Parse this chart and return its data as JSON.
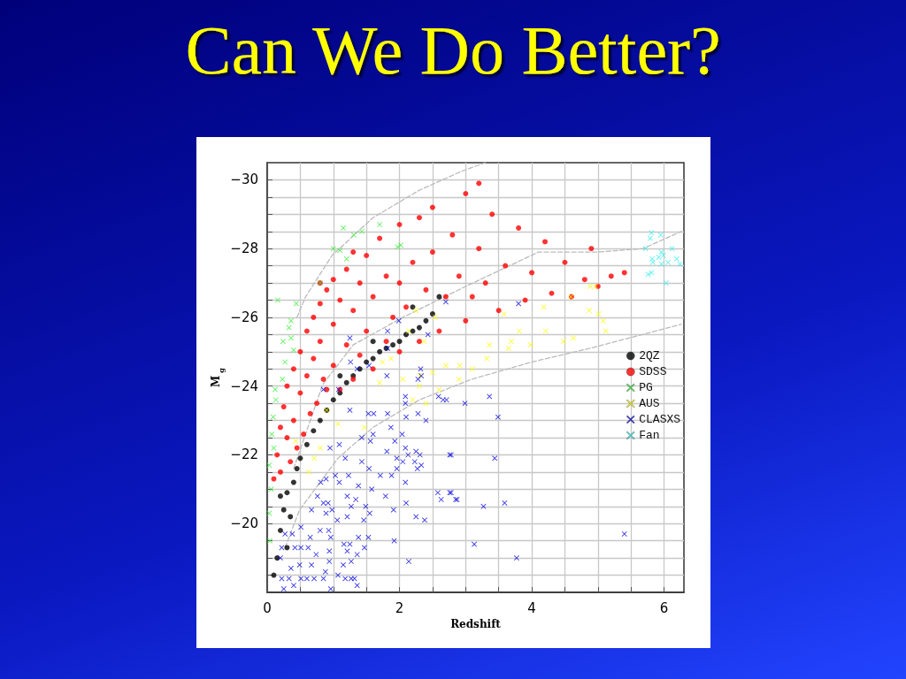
{
  "chart_data": {
    "type": "scatter",
    "title": "Can We Do Better?",
    "xlabel": "Redshift",
    "ylabel": "M$_{g}$",
    "xlim": [
      0,
      6.3
    ],
    "ylim": [
      -18,
      -30.5
    ],
    "xticks": [
      0,
      {
        "value": 0.5,
        "label": null
      },
      {
        "value": 1,
        "label": null
      },
      {
        "value": 1.5,
        "label": null
      },
      2,
      {
        "value": 2.5,
        "label": null
      },
      {
        "value": 3,
        "label": null
      },
      {
        "value": 3.5,
        "label": null
      },
      4,
      {
        "value": 4.5,
        "label": null
      },
      {
        "value": 5,
        "label": null
      },
      {
        "value": 5.5,
        "label": null
      },
      6
    ],
    "yticks": [
      {
        "value": -18.5,
        "label": null
      },
      {
        "value": -19,
        "label": null
      },
      {
        "value": -19.5,
        "label": null
      },
      {
        "value": -20,
        "label": "−20"
      },
      {
        "value": -20.5,
        "label": null
      },
      {
        "value": -21,
        "label": null
      },
      {
        "value": -21.5,
        "label": null
      },
      {
        "value": -22,
        "label": "−22"
      },
      {
        "value": -22.5,
        "label": null
      },
      {
        "value": -23,
        "label": null
      },
      {
        "value": -23.5,
        "label": null
      },
      {
        "value": -24,
        "label": "−24"
      },
      {
        "value": -24.5,
        "label": null
      },
      {
        "value": -25,
        "label": null
      },
      {
        "value": -25.5,
        "label": null
      },
      {
        "value": -26,
        "label": "−26"
      },
      {
        "value": -26.5,
        "label": null
      },
      {
        "value": -27,
        "label": null
      },
      {
        "value": -27.5,
        "label": null
      },
      {
        "value": -28,
        "label": "−28"
      },
      {
        "value": -28.5,
        "label": null
      },
      {
        "value": -29,
        "label": null
      },
      {
        "value": -29.5,
        "label": null
      },
      {
        "value": -30,
        "label": "−30"
      }
    ],
    "grid": true,
    "legend": "right",
    "series": [
      {
        "type": "line",
        "color": "#bbbbbb",
        "line_style": "dashed",
        "marker": "none",
        "x": [
          0.45,
          0.58,
          0.98,
          1.6,
          2.3,
          2.95,
          3.3
        ],
        "values": [
          -26.0,
          -26.6,
          -27.8,
          -28.9,
          -29.7,
          -30.26,
          -30.5
        ]
      },
      {
        "type": "line",
        "color": "#bbbbbb",
        "line_style": "dashed",
        "marker": "none",
        "x": [
          0.4,
          0.84,
          1.3,
          2.05,
          3,
          4.1,
          5,
          5.68,
          6.26
        ],
        "values": [
          -21.6,
          -24.05,
          -25.2,
          -26.0,
          -26.9,
          -27.9,
          -27.9,
          -28.0,
          -28.5
        ]
      },
      {
        "type": "line",
        "color": "#bbbbbb",
        "line_style": "dashed",
        "marker": "none",
        "x": [
          0.27,
          0.49,
          1.07,
          1.6,
          2.3,
          3.09,
          4,
          4.88,
          6.26
        ],
        "values": [
          -19.3,
          -20.4,
          -21.9,
          -22.8,
          -23.6,
          -24.2,
          -24.7,
          -25.1,
          -25.8
        ]
      },
      {
        "name": "2QZ",
        "color": "#000000",
        "marker": "circle",
        "x": [
          0.15,
          0.2,
          0.25,
          0.3,
          0.35,
          0.4,
          0.45,
          0.5,
          0.6,
          0.7,
          0.8,
          0.9,
          1.0,
          1.1,
          1.2,
          1.3,
          1.4,
          1.5,
          1.6,
          1.7,
          1.8,
          1.9,
          2.0,
          2.1,
          2.2,
          2.3,
          2.4,
          2.5,
          0.1,
          0.3,
          0.2,
          1.1,
          1.6,
          2.2,
          2.6
        ],
        "values": [
          -19.0,
          -19.8,
          -20.4,
          -20.9,
          -20.2,
          -21.2,
          -21.6,
          -21.9,
          -22.3,
          -22.7,
          -23.0,
          -23.3,
          -23.6,
          -23.8,
          -24.1,
          -24.3,
          -24.5,
          -24.7,
          -24.8,
          -25.0,
          -25.1,
          -25.2,
          -25.3,
          -25.5,
          -25.6,
          -25.7,
          -25.9,
          -26.1,
          -18.5,
          -19.3,
          -20.8,
          -24.3,
          -25.3,
          -26.3,
          -26.6
        ]
      },
      {
        "name": "SDSS",
        "color": "#ff0000",
        "marker": "circle",
        "x": [
          0.1,
          0.15,
          0.2,
          0.2,
          0.25,
          0.3,
          0.3,
          0.35,
          0.4,
          0.4,
          0.45,
          0.5,
          0.5,
          0.55,
          0.6,
          0.6,
          0.65,
          0.7,
          0.7,
          0.75,
          0.8,
          0.8,
          0.85,
          0.9,
          0.9,
          1.0,
          1.0,
          1.0,
          1.1,
          1.1,
          1.2,
          1.2,
          1.3,
          1.3,
          1.4,
          1.4,
          1.5,
          1.5,
          1.6,
          1.6,
          1.7,
          1.8,
          1.8,
          1.9,
          2.0,
          2.0,
          2.0,
          2.1,
          2.2,
          2.3,
          2.4,
          2.5,
          2.5,
          2.6,
          2.7,
          2.8,
          2.9,
          3.0,
          3.0,
          3.1,
          3.2,
          3.3,
          3.4,
          3.5,
          3.6,
          3.8,
          3.9,
          4.0,
          4.2,
          4.3,
          4.5,
          4.6,
          4.8,
          4.9,
          5.0,
          5.2,
          5.4,
          3.2,
          2.3,
          1.3,
          0.8
        ],
        "values": [
          -21.3,
          -22.0,
          -22.8,
          -21.5,
          -23.4,
          -22.5,
          -24.0,
          -21.8,
          -24.5,
          -23.0,
          -22.2,
          -25.0,
          -23.8,
          -22.6,
          -25.6,
          -24.3,
          -23.2,
          -26.0,
          -24.8,
          -23.5,
          -26.4,
          -25.3,
          -24.2,
          -26.8,
          -23.9,
          -27.1,
          -25.8,
          -24.6,
          -26.5,
          -23.9,
          -27.4,
          -25.2,
          -26.2,
          -24.2,
          -27.0,
          -24.9,
          -27.8,
          -25.6,
          -26.6,
          -24.5,
          -28.3,
          -27.2,
          -25.3,
          -26.0,
          -28.7,
          -27.0,
          -25.0,
          -26.3,
          -27.6,
          -25.3,
          -26.8,
          -29.2,
          -27.9,
          -25.6,
          -26.6,
          -28.4,
          -27.2,
          -29.6,
          -25.9,
          -26.6,
          -28.0,
          -27.0,
          -29.0,
          -26.2,
          -27.5,
          -28.6,
          -26.5,
          -27.3,
          -28.2,
          -26.7,
          -27.6,
          -26.6,
          -27.1,
          -28.0,
          -26.9,
          -27.2,
          -27.3,
          -29.9,
          -28.9,
          -27.9,
          -27.0
        ]
      },
      {
        "name": "PG",
        "color": "#33ee33",
        "marker": "cross",
        "x": [
          1.15,
          1.31,
          1.43,
          1.7,
          1.97,
          2.02,
          1.0,
          1.1,
          1.2,
          0.8,
          0.16,
          0.44,
          0.36,
          0.33,
          0.24,
          0.36,
          0.4,
          0.27,
          0.23,
          0.13,
          0.09,
          0.07,
          0.03,
          0.03,
          0.04,
          0.12,
          0.1,
          0.06
        ],
        "values": [
          -28.6,
          -28.4,
          -28.5,
          -28.7,
          -28.05,
          -28.1,
          -28.0,
          -27.95,
          -27.7,
          -27.0,
          -26.5,
          -26.4,
          -25.9,
          -25.7,
          -25.3,
          -25.4,
          -25.05,
          -24.7,
          -24.2,
          -23.6,
          -23.1,
          -22.6,
          -21.7,
          -20.3,
          -19.5,
          -23.9,
          -22.2,
          -21.0
        ]
      },
      {
        "name": "AUS",
        "color": "#ffff00",
        "marker": "cross",
        "x": [
          4.88,
          4.96,
          4.18,
          4.59,
          4.87,
          5.01,
          5.08,
          5.12,
          4.21,
          4.48,
          4.63,
          3.98,
          3.69,
          3.65,
          3.32,
          3.36,
          2.91,
          3.81,
          3.58,
          0.71,
          0.8,
          0.63,
          1.7,
          2.05,
          2.31,
          1.07,
          0.9,
          1.47,
          0.43,
          1.74,
          1.87,
          2.25,
          2.14,
          2.37,
          2.54,
          2.3,
          2.5,
          2.7,
          2.2,
          2.6,
          2.9,
          3.1,
          2.4
        ],
        "values": [
          -26.9,
          -26.9,
          -26.3,
          -26.6,
          -26.2,
          -26.1,
          -25.9,
          -25.6,
          -25.6,
          -25.3,
          -25.4,
          -25.2,
          -25.3,
          -25.1,
          -24.8,
          -25.2,
          -24.6,
          -25.6,
          -26.1,
          -21.9,
          -22.2,
          -21.5,
          -24.1,
          -24.2,
          -24.3,
          -22.9,
          -23.3,
          -22.8,
          -22.4,
          -24.7,
          -24.8,
          -26.2,
          -25.6,
          -25.3,
          -26.0,
          -24.0,
          -24.4,
          -24.6,
          -23.6,
          -23.9,
          -24.2,
          -24.5,
          -23.5
        ]
      },
      {
        "name": "CLASXS",
        "color": "#0000dd",
        "marker": "cross",
        "x": [
          0.85,
          1.08,
          1.25,
          1.53,
          1.61,
          1.82,
          1.87,
          2.09,
          2.09,
          2.1,
          2.28,
          2.4,
          2.33,
          2.59,
          2.66,
          2.76,
          2.04,
          1.6,
          1.43,
          1.56,
          1.93,
          2.09,
          2.25,
          2.31,
          2.13,
          1.96,
          2.05,
          2.23,
          2.33,
          2.27,
          1.96,
          1.81,
          1.18,
          1.43,
          0.95,
          1.09,
          1.71,
          1.88,
          1.54,
          1.23,
          1.03,
          0.89,
          0.81,
          1.09,
          1.38,
          1.58,
          1.79,
          2.09,
          2.1,
          2.58,
          2.76,
          2.63,
          2.85,
          0.76,
          0.85,
          0.92,
          1.34,
          1.21,
          1.27,
          1.49,
          1.55,
          1.91,
          2.25,
          2.38,
          0.67,
          0.89,
          0.98,
          1.06,
          1.21,
          1.46,
          0.27,
          0.38,
          0.51,
          0.65,
          0.8,
          0.93,
          0.96,
          1.16,
          1.25,
          1.38,
          1.53,
          1.92,
          0.22,
          0.42,
          0.51,
          0.62,
          0.74,
          0.94,
          1.21,
          1.36,
          1.47,
          0.2,
          0.36,
          0.49,
          0.67,
          0.94,
          1.15,
          1.27,
          2.14,
          0.22,
          0.33,
          0.51,
          0.6,
          0.71,
          0.85,
          0.88,
          1.07,
          1.18,
          1.32,
          1.36,
          0.96,
          0.25,
          0.4,
          1.27,
          2.71,
          2.99,
          3.36,
          3.49,
          2.78,
          3.44,
          2.78,
          2.87,
          3.27,
          3.59,
          5.4,
          3.13,
          3.77,
          2.7,
          1.99,
          1.82,
          1.25,
          1.82,
          1.26,
          1.36,
          1.54,
          1.81,
          2.28,
          2.32,
          2.43,
          3.8
        ],
        "values": [
          -23.9,
          -23.9,
          -23.3,
          -23.2,
          -23.2,
          -23.2,
          -22.8,
          -23.7,
          -23.5,
          -23.1,
          -23.2,
          -23.0,
          -24.3,
          -23.7,
          -23.6,
          -22.0,
          -22.6,
          -22.6,
          -22.5,
          -22.4,
          -22.4,
          -22.2,
          -22.1,
          -22.0,
          -22.0,
          -21.9,
          -21.8,
          -21.8,
          -21.7,
          -21.6,
          -21.6,
          -22.1,
          -21.9,
          -21.8,
          -22.2,
          -22.3,
          -21.4,
          -21.4,
          -21.6,
          -21.4,
          -21.4,
          -21.3,
          -21.2,
          -21.2,
          -21.1,
          -21.0,
          -20.8,
          -21.2,
          -20.6,
          -20.9,
          -20.9,
          -20.7,
          -20.7,
          -20.8,
          -20.6,
          -20.6,
          -20.7,
          -20.8,
          -20.5,
          -20.5,
          -20.3,
          -20.4,
          -20.2,
          -20.1,
          -20.4,
          -20.3,
          -20.4,
          -20.1,
          -20.2,
          -20.1,
          -19.7,
          -19.7,
          -19.9,
          -19.6,
          -19.8,
          -19.8,
          -19.6,
          -19.4,
          -19.4,
          -19.6,
          -19.6,
          -19.5,
          -19.3,
          -19.3,
          -19.3,
          -19.3,
          -19.1,
          -19.2,
          -19.2,
          -19.1,
          -19.3,
          -19.0,
          -18.7,
          -18.8,
          -18.8,
          -18.9,
          -18.8,
          -18.9,
          -18.9,
          -18.4,
          -18.4,
          -18.4,
          -18.4,
          -18.4,
          -18.4,
          -18.6,
          -18.5,
          -18.4,
          -18.4,
          -18.2,
          -18.1,
          -18.1,
          -18.2,
          -18.4,
          -23.6,
          -23.5,
          -23.7,
          -23.1,
          -22.0,
          -21.9,
          -20.9,
          -20.7,
          -20.5,
          -20.6,
          -19.7,
          -19.4,
          -19.0,
          -26.45,
          -25.9,
          -25.6,
          -25.4,
          -25.1,
          -24.7,
          -24.5,
          -24.6,
          -24.3,
          -24.2,
          -24.5,
          -25.5,
          -26.4
        ]
      },
      {
        "name": "Fan",
        "color": "#33eeee",
        "marker": "cross",
        "x": [
          5.81,
          5.79,
          5.95,
          5.72,
          6.12,
          5.96,
          5.82,
          5.92,
          5.99,
          6.06,
          5.83,
          5.96,
          6.19,
          6.24,
          5.81,
          5.76,
          6.03
        ],
        "values": [
          -28.46,
          -28.3,
          -28.4,
          -28.0,
          -28.0,
          -27.9,
          -27.7,
          -27.75,
          -27.8,
          -27.6,
          -27.6,
          -27.55,
          -27.7,
          -27.55,
          -27.3,
          -27.25,
          -27.0
        ]
      }
    ]
  }
}
